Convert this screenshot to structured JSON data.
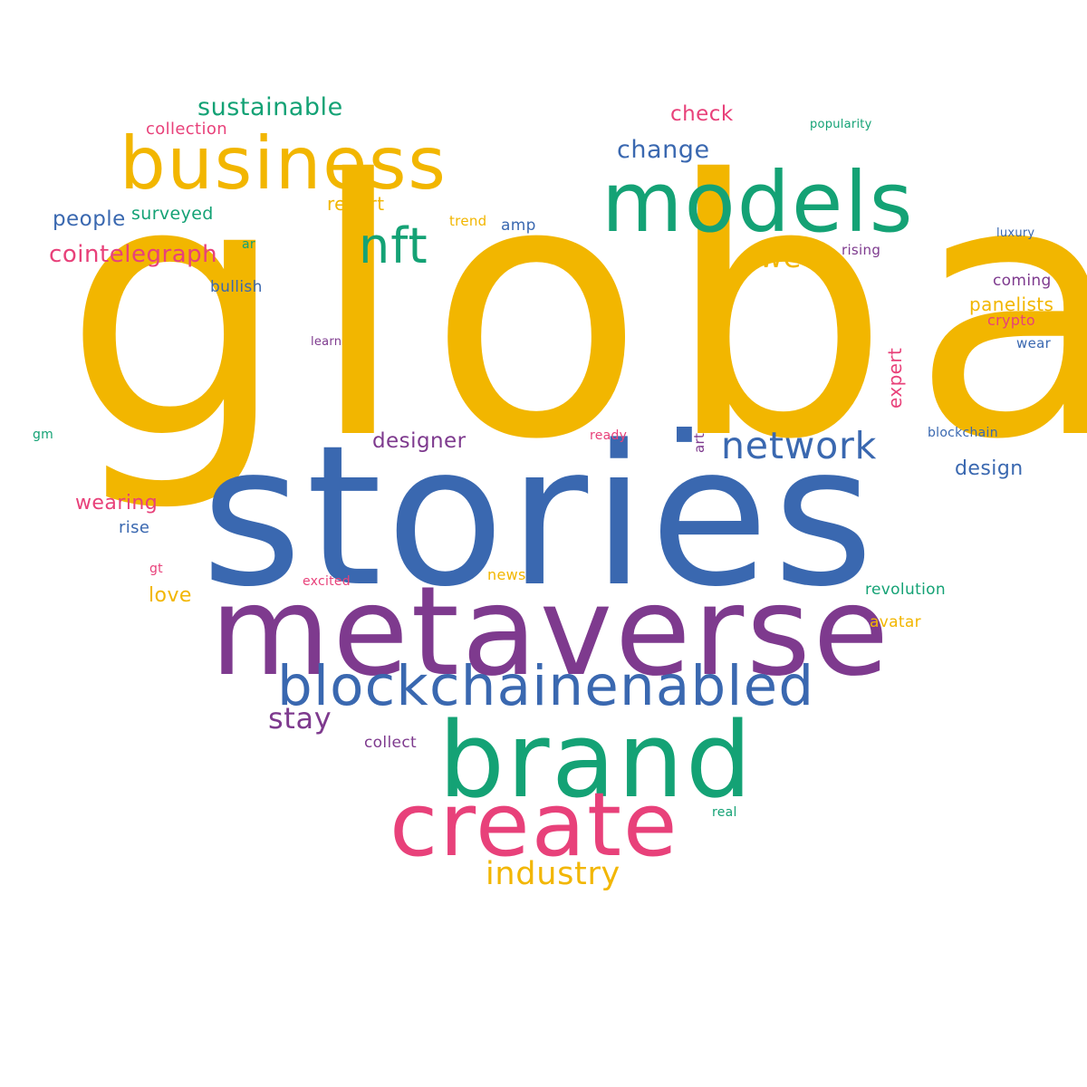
{
  "palette": {
    "yellow": "#f2b600",
    "blue": "#3a68b0",
    "purple": "#7e3a8e",
    "green": "#14a275",
    "pink": "#e8417a"
  },
  "words": {
    "global": "global",
    "stories": "stories",
    "metaverse": "metaverse",
    "brand": "brand",
    "models": "models",
    "create": "create",
    "business": "business",
    "blockchainenabled": "blockchainenabled",
    "nft": "nft",
    "network": "network",
    "industry": "industry",
    "sustainable": "sustainable",
    "cointelegraph": "cointelegraph",
    "week": "week",
    "change": "change",
    "stay": "stay",
    "people": "people",
    "check": "check",
    "designer": "designer",
    "panelists": "panelists",
    "design": "design",
    "wearing": "wearing",
    "surveyed": "surveyed",
    "expert": "expert",
    "report": "report",
    "collection": "collection",
    "love": "love",
    "revolution": "revolution",
    "avatar": "avatar",
    "bullish": "bullish",
    "rise": "rise",
    "coming": "coming",
    "news": "news",
    "collect": "collect",
    "amp": "amp",
    "crypto": "crypto",
    "trend": "trend",
    "art": "art",
    "wear": "wear",
    "rising": "rising",
    "blockchain": "blockchain",
    "popularity": "popularity",
    "luxury": "luxury",
    "learn": "learn",
    "ar": "ar",
    "excited": "excited",
    "ready": "ready",
    "real": "real",
    "gt": "gt",
    "gm": "gm",
    "square_glyph": "■"
  }
}
